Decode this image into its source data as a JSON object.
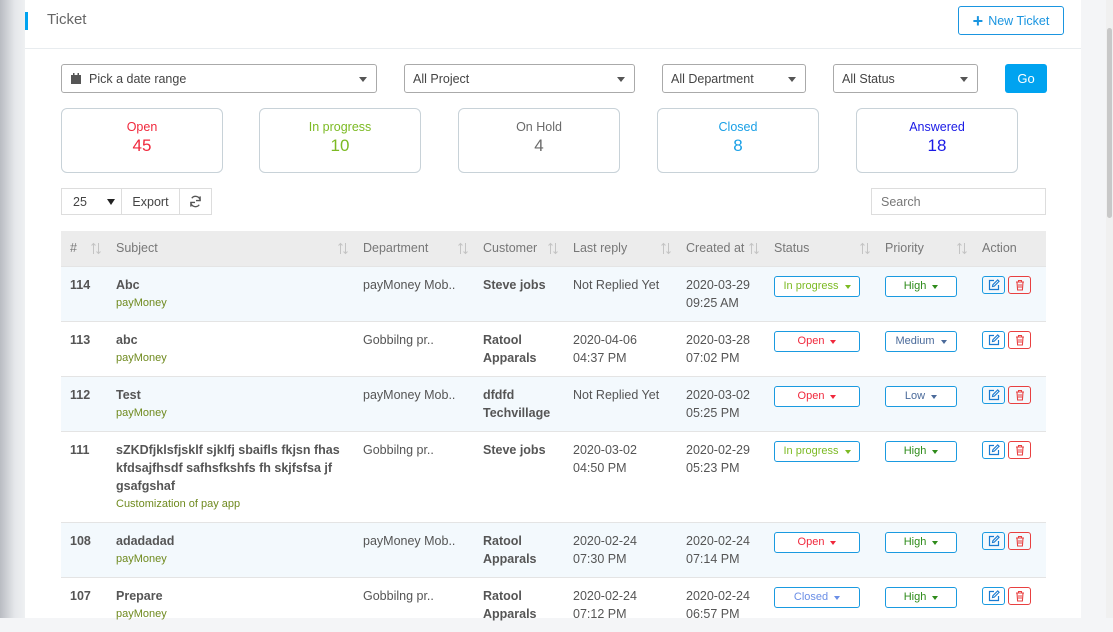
{
  "header": {
    "title": "Ticket",
    "new_ticket": "New Ticket"
  },
  "filters": {
    "date": "Pick a date range",
    "project": "All Project",
    "department": "All Department",
    "status": "All Status",
    "go": "Go"
  },
  "stats": [
    {
      "label": "Open",
      "value": "45",
      "color": "#f0283c"
    },
    {
      "label": "In progress",
      "value": "10",
      "color": "#7cba23"
    },
    {
      "label": "On Hold",
      "value": "4",
      "color": "#6a6a6a"
    },
    {
      "label": "Closed",
      "value": "8",
      "color": "#1aa0e6"
    },
    {
      "label": "Answered",
      "value": "18",
      "color": "#1a1ae6"
    }
  ],
  "toolbar": {
    "page_size": "25",
    "export": "Export",
    "search_placeholder": "Search"
  },
  "columns": [
    "#",
    "Subject",
    "Department",
    "Customer",
    "Last reply",
    "Created at",
    "Status",
    "Priority",
    "Action"
  ],
  "rows": [
    {
      "id": "114",
      "subject": "Abc",
      "project": "payMoney",
      "department": "payMoney Mob..",
      "customer": "Steve jobs",
      "last_reply": "Not Replied Yet",
      "created": "2020-03-29 09:25 AM",
      "status": "In progress",
      "priority": "High"
    },
    {
      "id": "113",
      "subject": "abc",
      "project": "payMoney",
      "department": "Gobbilng pr..",
      "customer": "Ratool Apparals",
      "last_reply": "2020-04-06 04:37 PM",
      "created": "2020-03-28 07:02 PM",
      "status": "Open",
      "priority": "Medium"
    },
    {
      "id": "112",
      "subject": "Test",
      "project": "payMoney",
      "department": "payMoney Mob..",
      "customer": "dfdfd Techvillage",
      "last_reply": "Not Replied Yet",
      "created": "2020-03-02 05:25 PM",
      "status": "Open",
      "priority": "Low"
    },
    {
      "id": "111",
      "subject": "sZKDfjklsfjsklf sjklfj sbaifls fkjsn fhas kfdsajfhsdf safhsfkshfs fh skjfsfsa jf gsafgshaf",
      "project": "Customization of pay app",
      "department": "Gobbilng pr..",
      "customer": "Steve jobs",
      "last_reply": "2020-03-02 04:50 PM",
      "created": "2020-02-29 05:23 PM",
      "status": "In progress",
      "priority": "High"
    },
    {
      "id": "108",
      "subject": "adadadad",
      "project": "payMoney",
      "department": "payMoney Mob..",
      "customer": "Ratool Apparals",
      "last_reply": "2020-02-24 07:30 PM",
      "created": "2020-02-24 07:14 PM",
      "status": "Open",
      "priority": "High"
    },
    {
      "id": "107",
      "subject": "Prepare",
      "project": "payMoney",
      "department": "Gobbilng pr..",
      "customer": "Ratool Apparals",
      "last_reply": "2020-02-24 07:12 PM",
      "created": "2020-02-24 06:57 PM",
      "status": "Closed",
      "priority": "High"
    }
  ],
  "status_colors": {
    "Open": "#f0283c",
    "In progress": "#7cba23",
    "Closed": "#6a8ee6"
  },
  "priority_colors": {
    "High": "#2e8b1a",
    "Medium": "#4a6a9a",
    "Low": "#4a6a9a"
  },
  "accent": "#00a3f0"
}
